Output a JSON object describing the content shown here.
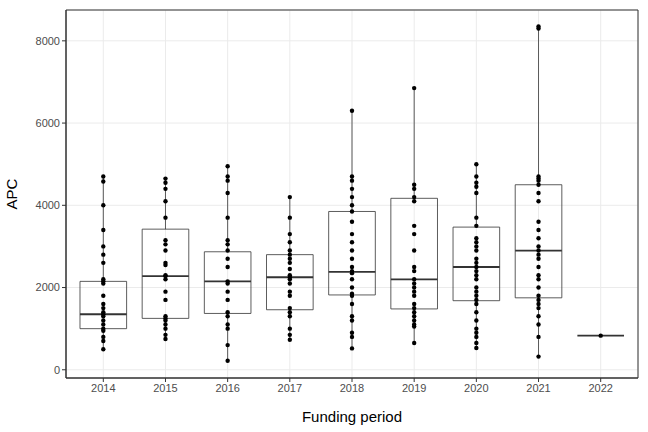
{
  "chart_data": {
    "type": "boxplot",
    "x_label": "Funding period",
    "y_label": "APC",
    "categories": [
      "2014",
      "2015",
      "2016",
      "2017",
      "2018",
      "2019",
      "2020",
      "2021",
      "2022"
    ],
    "boxes": [
      {
        "low": 500,
        "q1": 1000,
        "median": 1350,
        "q3": 2150,
        "high": 4700
      },
      {
        "low": 750,
        "q1": 1250,
        "median": 2280,
        "q3": 3420,
        "high": 4650
      },
      {
        "low": 220,
        "q1": 1370,
        "median": 2150,
        "q3": 2870,
        "high": 4950
      },
      {
        "low": 730,
        "q1": 1460,
        "median": 2250,
        "q3": 2800,
        "high": 4200
      },
      {
        "low": 520,
        "q1": 1820,
        "median": 2380,
        "q3": 3850,
        "high": 6300
      },
      {
        "low": 650,
        "q1": 1480,
        "median": 2200,
        "q3": 4170,
        "high": 6850
      },
      {
        "low": 530,
        "q1": 1680,
        "median": 2500,
        "q3": 3470,
        "high": 5000
      },
      {
        "low": 320,
        "q1": 1750,
        "median": 2900,
        "q3": 4500,
        "high": 8350
      },
      {
        "low": 830,
        "q1": 830,
        "median": 830,
        "q3": 830,
        "high": 830
      }
    ],
    "points": [
      [
        4700,
        4580,
        4000,
        3400,
        3000,
        2800,
        2600,
        2200,
        2150,
        2100,
        1800,
        1600,
        1500,
        1400,
        1350,
        1300,
        1200,
        1100,
        1000,
        950,
        800,
        700,
        500
      ],
      [
        4650,
        4550,
        4400,
        4100,
        3700,
        3150,
        3050,
        2900,
        2600,
        2550,
        2300,
        2280,
        2200,
        1900,
        1700,
        1300,
        1250,
        1200,
        1100,
        1000,
        850,
        750
      ],
      [
        4950,
        4700,
        4600,
        4300,
        3700,
        3150,
        3050,
        2900,
        2700,
        2500,
        2150,
        2100,
        1900,
        1700,
        1400,
        1300,
        1100,
        1000,
        600,
        220
      ],
      [
        4200,
        3700,
        3300,
        3100,
        2900,
        2800,
        2700,
        2600,
        2450,
        2300,
        2250,
        2200,
        2100,
        1900,
        1800,
        1500,
        1400,
        1300,
        1000,
        850,
        730
      ],
      [
        6300,
        4700,
        4600,
        4400,
        4200,
        4000,
        3850,
        3600,
        3300,
        3100,
        2900,
        2700,
        2500,
        2400,
        2350,
        2200,
        2000,
        1850,
        1800,
        1600,
        1300,
        1200,
        900,
        800,
        520
      ],
      [
        6850,
        4500,
        4400,
        4200,
        4100,
        3500,
        3300,
        2900,
        2500,
        2400,
        2200,
        2100,
        2000,
        1900,
        1800,
        1600,
        1500,
        1400,
        1300,
        1200,
        1100,
        1050,
        650
      ],
      [
        5000,
        4700,
        4550,
        4450,
        4300,
        3700,
        3500,
        3200,
        3100,
        3000,
        2900,
        2700,
        2600,
        2500,
        2400,
        2300,
        2200,
        2000,
        1900,
        1800,
        1700,
        1600,
        1400,
        1200,
        1000,
        900,
        800,
        650,
        530
      ],
      [
        8350,
        8300,
        4700,
        4650,
        4600,
        4500,
        4300,
        4100,
        3600,
        3400,
        3200,
        3000,
        2900,
        2800,
        2700,
        2500,
        2300,
        2200,
        2000,
        1800,
        1700,
        1600,
        1500,
        1300,
        1100,
        800,
        320
      ],
      [
        830
      ]
    ],
    "color": "#000000",
    "ylim": [
      -200,
      8750
    ],
    "yticks": [
      0,
      2000,
      4000,
      6000,
      8000
    ],
    "grid": true
  }
}
